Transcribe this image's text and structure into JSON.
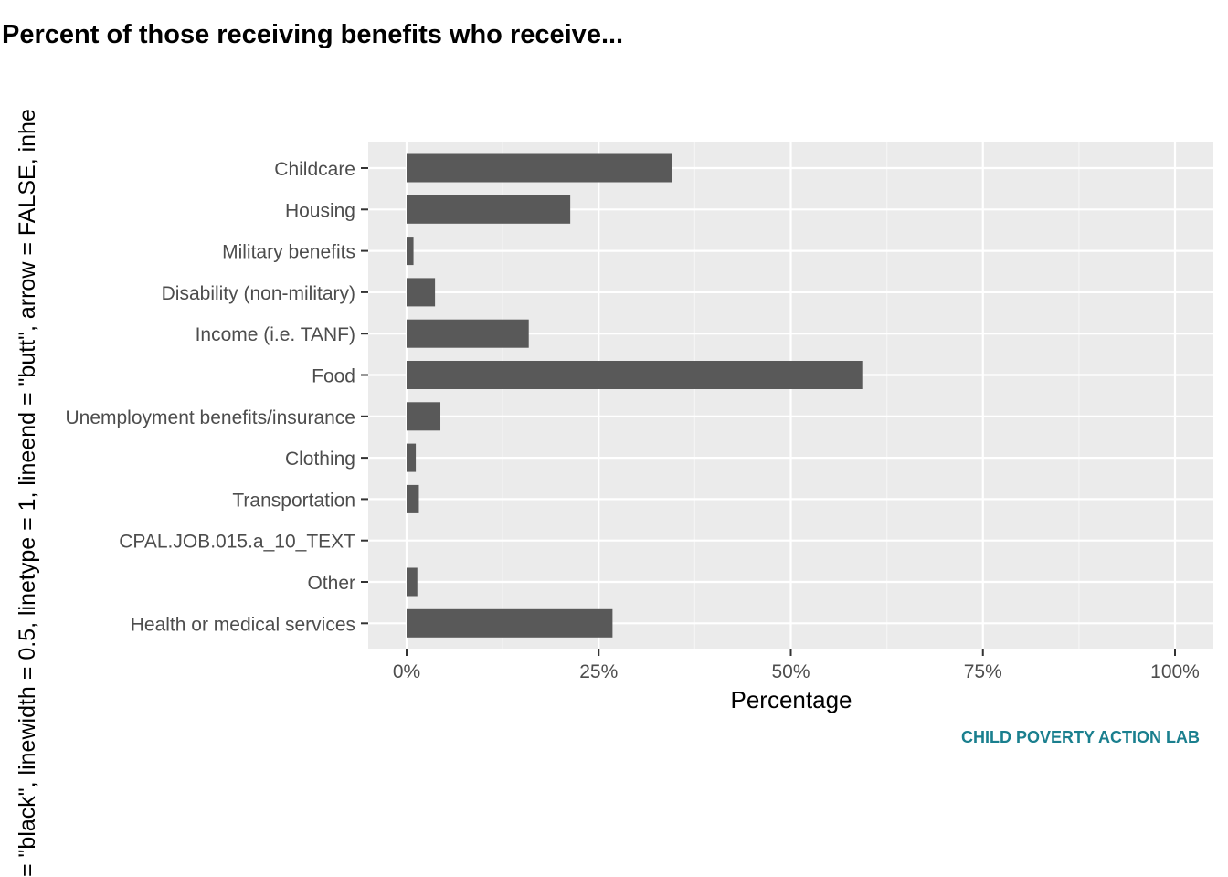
{
  "side_text": "= \"black\", linewidth = 0.5, linetype = 1, lineend = \"butt\", arrow = FALSE, inhe",
  "caption": "CHILD POVERTY ACTION LAB",
  "colors": {
    "panel": "#ebebeb",
    "grid_major": "#ffffff",
    "grid_minor": "#f5f5f5",
    "bar": "#595959",
    "caption": "#1a7f8e"
  },
  "chart_data": {
    "type": "bar",
    "orientation": "horizontal",
    "title": "Percent of those receiving benefits who receive...",
    "xlabel": "Percentage",
    "ylabel": "",
    "xlim": [
      0,
      100
    ],
    "x_ticks": [
      0,
      25,
      50,
      75,
      100
    ],
    "x_tick_labels": [
      "0%",
      "25%",
      "50%",
      "75%",
      "100%"
    ],
    "grid": true,
    "legend": "none",
    "categories": [
      "Childcare",
      "Housing",
      "Military benefits",
      "Disability (non-military)",
      "Income (i.e. TANF)",
      "Food",
      "Unemployment benefits/insurance",
      "Clothing",
      "Transportation",
      "CPAL.JOB.015.a_10_TEXT",
      "Other",
      "Health or medical services"
    ],
    "values": [
      34.5,
      21.3,
      0.9,
      3.7,
      15.9,
      59.3,
      4.4,
      1.2,
      1.6,
      0,
      1.4,
      26.8
    ]
  }
}
